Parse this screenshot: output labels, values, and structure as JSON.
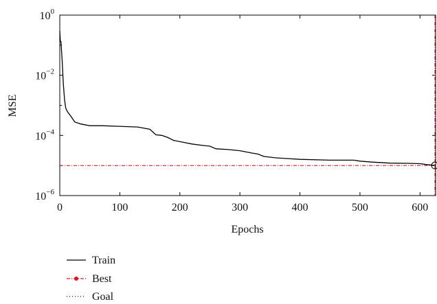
{
  "chart_data": {
    "type": "line",
    "title": "",
    "xlabel": "Epochs",
    "ylabel": "MSE",
    "xlim": [
      0,
      626
    ],
    "ylim": [
      1e-06,
      1
    ],
    "yscale": "log",
    "grid": false,
    "legend_position": "below",
    "x_ticks": [
      0,
      100,
      200,
      300,
      400,
      500,
      600
    ],
    "y_ticks": [
      {
        "base": "10",
        "exp": "0",
        "value": 1
      },
      {
        "base": "10",
        "exp": "−2",
        "value": 0.01
      },
      {
        "base": "10",
        "exp": "−4",
        "value": 0.0001
      },
      {
        "base": "10",
        "exp": "−6",
        "value": 1e-06
      }
    ],
    "series": [
      {
        "name": "Train",
        "color": "#000000",
        "style": "solid",
        "x": [
          0,
          1,
          2,
          4,
          6,
          8,
          10,
          13,
          18,
          25,
          35,
          50,
          70,
          100,
          130,
          150,
          160,
          170,
          180,
          190,
          200,
          220,
          240,
          250,
          260,
          280,
          300,
          320,
          330,
          340,
          360,
          380,
          400,
          450,
          490,
          500,
          520,
          550,
          580,
          600,
          610,
          626
        ],
        "y": [
          0.3,
          0.13,
          0.13,
          0.03,
          0.005,
          0.0015,
          0.0008,
          0.0006,
          0.00045,
          0.00028,
          0.00024,
          0.00021,
          0.00021,
          0.0002,
          0.00019,
          0.00016,
          0.000105,
          0.0001,
          8.5e-05,
          6.8e-05,
          6.2e-05,
          5.2e-05,
          4.6e-05,
          4.4e-05,
          3.6e-05,
          3.4e-05,
          3.1e-05,
          2.6e-05,
          2.4e-05,
          2e-05,
          1.8e-05,
          1.7e-05,
          1.6e-05,
          1.5e-05,
          1.5e-05,
          1.4e-05,
          1.3e-05,
          1.2e-05,
          1.18e-05,
          1.15e-05,
          1.08e-05,
          1e-05
        ]
      },
      {
        "name": "Best",
        "color": "#e0141e",
        "style": "dashdot",
        "marker": "circle",
        "best_epoch": 626,
        "best_value": 1e-05
      },
      {
        "name": "Goal",
        "color": "#000000",
        "style": "dotted"
      }
    ]
  }
}
